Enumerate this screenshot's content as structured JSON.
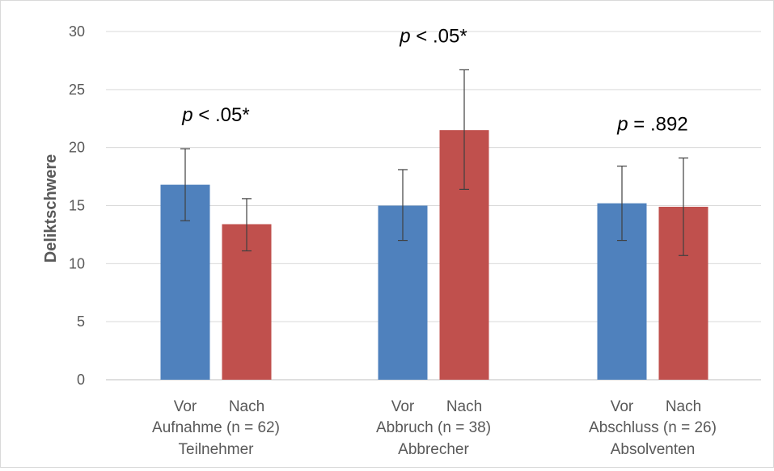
{
  "chart_data": {
    "type": "bar",
    "ylabel": "Deliktschwere",
    "ylim": [
      0,
      30
    ],
    "yticks": [
      0,
      5,
      10,
      15,
      20,
      25,
      30
    ],
    "grid": true,
    "series_colors": {
      "Vor": "#4f81bd",
      "Nach": "#c0504d"
    },
    "groups": [
      {
        "label_line1": "Aufnahme (n = 62)",
        "label_line2": "Teilnehmer",
        "annotation_p": "p",
        "annotation_rest": " < .05*",
        "bars": [
          {
            "label": "Vor",
            "value": 16.8,
            "err_low": 13.7,
            "err_high": 19.9
          },
          {
            "label": "Nach",
            "value": 13.4,
            "err_low": 11.1,
            "err_high": 15.6
          }
        ]
      },
      {
        "label_line1": "Abbruch (n = 38)",
        "label_line2": "Abbrecher",
        "annotation_p": "p",
        "annotation_rest": " < .05*",
        "bars": [
          {
            "label": "Vor",
            "value": 15.0,
            "err_low": 12.0,
            "err_high": 18.1
          },
          {
            "label": "Nach",
            "value": 21.5,
            "err_low": 16.4,
            "err_high": 26.7
          }
        ]
      },
      {
        "label_line1": "Abschluss (n = 26)",
        "label_line2": "Absolventen",
        "annotation_p": "p",
        "annotation_rest": " = .892",
        "bars": [
          {
            "label": "Vor",
            "value": 15.2,
            "err_low": 12.0,
            "err_high": 18.4
          },
          {
            "label": "Nach",
            "value": 14.9,
            "err_low": 10.7,
            "err_high": 19.1
          }
        ]
      }
    ]
  }
}
